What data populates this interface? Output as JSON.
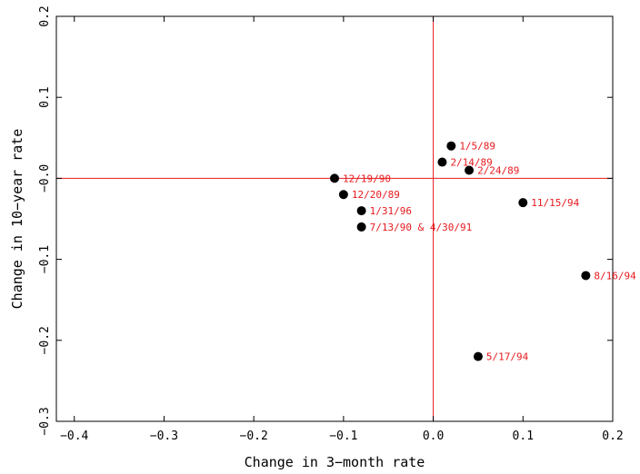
{
  "chart_data": {
    "type": "scatter",
    "title": "",
    "xlabel": "Change in 3−month rate",
    "ylabel": "Change in 10−year rate",
    "xlim": [
      -0.42,
      0.2
    ],
    "ylim": [
      -0.3,
      0.2
    ],
    "xticks": [
      -0.4,
      -0.3,
      -0.2,
      -0.1,
      0.0,
      0.1,
      0.2
    ],
    "xtick_labels": [
      "−0.4",
      "−0.3",
      "−0.2",
      "−0.1",
      "0.0",
      "0.1",
      "0.2"
    ],
    "yticks": [
      -0.3,
      -0.2,
      -0.1,
      0.0,
      0.1,
      0.2
    ],
    "ytick_labels": [
      "−0.3",
      "−0.2",
      "−0.1",
      "−0.0",
      "0.1",
      "0.2"
    ],
    "reference_lines": {
      "x": 0.0,
      "y": 0.0,
      "color": "#e8191e"
    },
    "grid": false,
    "point_color": "#000000",
    "label_color": "#e8191e",
    "points": [
      {
        "x": 0.02,
        "y": 0.04,
        "label": "1/5/89"
      },
      {
        "x": 0.01,
        "y": 0.02,
        "label": "2/14/89"
      },
      {
        "x": 0.04,
        "y": 0.01,
        "label": "2/24/89"
      },
      {
        "x": -0.11,
        "y": 0.0,
        "label": "12/19/90"
      },
      {
        "x": -0.1,
        "y": -0.02,
        "label": "12/20/89"
      },
      {
        "x": -0.08,
        "y": -0.04,
        "label": "1/31/96"
      },
      {
        "x": -0.08,
        "y": -0.06,
        "label": "7/13/90 & 4/30/91"
      },
      {
        "x": 0.1,
        "y": -0.03,
        "label": "11/15/94"
      },
      {
        "x": 0.17,
        "y": -0.12,
        "label": "8/16/94"
      },
      {
        "x": 0.05,
        "y": -0.22,
        "label": "5/17/94"
      }
    ]
  }
}
